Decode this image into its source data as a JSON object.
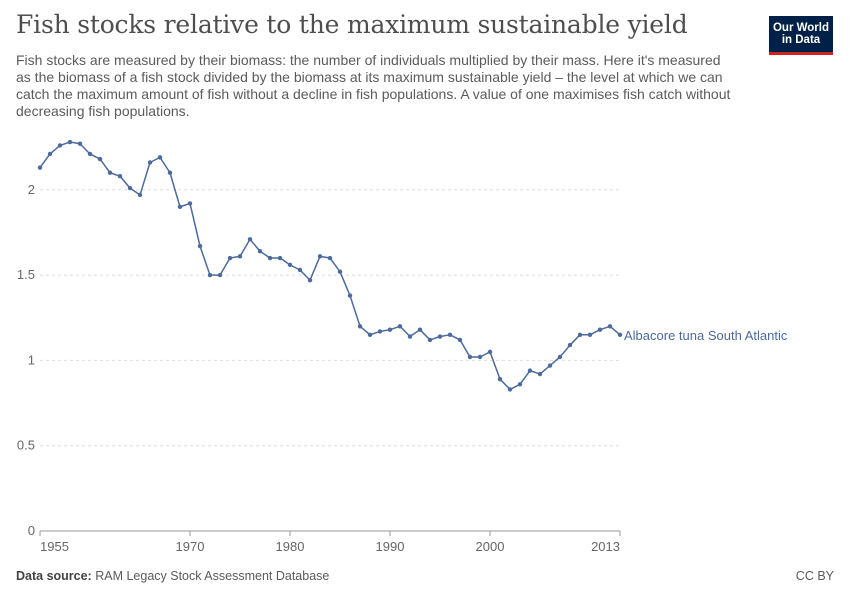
{
  "header": {
    "title": "Fish stocks relative to the maximum sustainable yield",
    "subtitle": "Fish stocks are measured by their biomass: the number of individuals multiplied by their mass. Here it's measured as the biomass of a fish stock divided by the biomass at its maximum sustainable yield – the level at which we can catch the maximum amount of fish without a decline in fish populations. A value of one maximises fish catch without decreasing fish populations.",
    "logo_line1": "Our World",
    "logo_line2": "in Data"
  },
  "footer": {
    "source_label": "Data source:",
    "source_text": "RAM Legacy Stock Assessment Database",
    "license": "CC BY"
  },
  "chart_data": {
    "type": "line",
    "title": "Fish stocks relative to the maximum sustainable yield",
    "xlabel": "",
    "ylabel": "",
    "xlim": [
      1955,
      2013
    ],
    "ylim": [
      0,
      2.3
    ],
    "x_ticks": [
      1955,
      1970,
      1980,
      1990,
      2000,
      2013
    ],
    "y_ticks": [
      0,
      0.5,
      1,
      1.5,
      2
    ],
    "grid": "horizontal dashed",
    "legend": "inline label at right end of line",
    "series": [
      {
        "name": "Albacore tuna South Atlantic",
        "color": "#4c6a9c",
        "x": [
          1955,
          1956,
          1957,
          1958,
          1959,
          1960,
          1961,
          1962,
          1963,
          1964,
          1965,
          1966,
          1967,
          1968,
          1969,
          1970,
          1971,
          1972,
          1973,
          1974,
          1975,
          1976,
          1977,
          1978,
          1979,
          1980,
          1981,
          1982,
          1983,
          1984,
          1985,
          1986,
          1987,
          1988,
          1989,
          1990,
          1991,
          1992,
          1993,
          1994,
          1995,
          1996,
          1997,
          1998,
          1999,
          2000,
          2001,
          2002,
          2003,
          2004,
          2005,
          2006,
          2007,
          2008,
          2009,
          2010,
          2011,
          2012,
          2013
        ],
        "values": [
          2.13,
          2.21,
          2.26,
          2.28,
          2.27,
          2.21,
          2.18,
          2.1,
          2.08,
          2.01,
          1.97,
          2.16,
          2.19,
          2.1,
          1.9,
          1.92,
          1.67,
          1.5,
          1.5,
          1.6,
          1.61,
          1.71,
          1.64,
          1.6,
          1.6,
          1.56,
          1.53,
          1.47,
          1.61,
          1.6,
          1.52,
          1.38,
          1.2,
          1.15,
          1.17,
          1.18,
          1.2,
          1.14,
          1.18,
          1.12,
          1.14,
          1.15,
          1.12,
          1.02,
          1.02,
          1.05,
          0.89,
          0.83,
          0.86,
          0.94,
          0.92,
          0.97,
          1.02,
          1.09,
          1.15,
          1.15,
          1.18,
          1.2,
          1.15
        ]
      }
    ]
  }
}
